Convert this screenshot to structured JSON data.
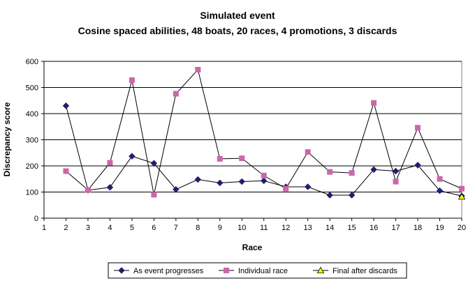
{
  "chart_data": {
    "type": "line",
    "title": "Simulated event",
    "subtitle": "Cosine spaced abilities, 48 boats, 20 races, 4 promotions, 3 discards",
    "xlabel": "Race",
    "ylabel": "Discrepancy score",
    "xlim": [
      1,
      20
    ],
    "ylim": [
      0,
      600
    ],
    "x_ticks": [
      1,
      2,
      3,
      4,
      5,
      6,
      7,
      8,
      9,
      10,
      11,
      12,
      13,
      14,
      15,
      16,
      17,
      18,
      19,
      20
    ],
    "y_ticks": [
      0,
      100,
      200,
      300,
      400,
      500,
      600
    ],
    "grid": "horizontal",
    "legend_position": "bottom",
    "series": [
      {
        "name": "As event progresses",
        "color": "#1f1f6e",
        "marker": "diamond",
        "x": [
          2,
          3,
          4,
          5,
          6,
          7,
          8,
          9,
          10,
          11,
          12,
          13,
          14,
          15,
          16,
          17,
          18,
          19,
          20
        ],
        "values": [
          430,
          107,
          118,
          237,
          210,
          110,
          148,
          135,
          140,
          143,
          120,
          120,
          88,
          88,
          186,
          180,
          203,
          105,
          85
        ]
      },
      {
        "name": "Individual race",
        "color": "#cc66aa",
        "marker": "square",
        "x": [
          2,
          3,
          4,
          5,
          6,
          7,
          8,
          9,
          10,
          11,
          12,
          13,
          14,
          15,
          16,
          17,
          18,
          19,
          20
        ],
        "values": [
          180,
          108,
          212,
          528,
          90,
          476,
          568,
          227,
          229,
          163,
          113,
          253,
          177,
          173,
          441,
          140,
          346,
          150,
          113
        ]
      },
      {
        "name": "Final after discards",
        "color": "#ffff00",
        "marker": "triangle",
        "x": [
          20
        ],
        "values": [
          82
        ]
      }
    ]
  }
}
